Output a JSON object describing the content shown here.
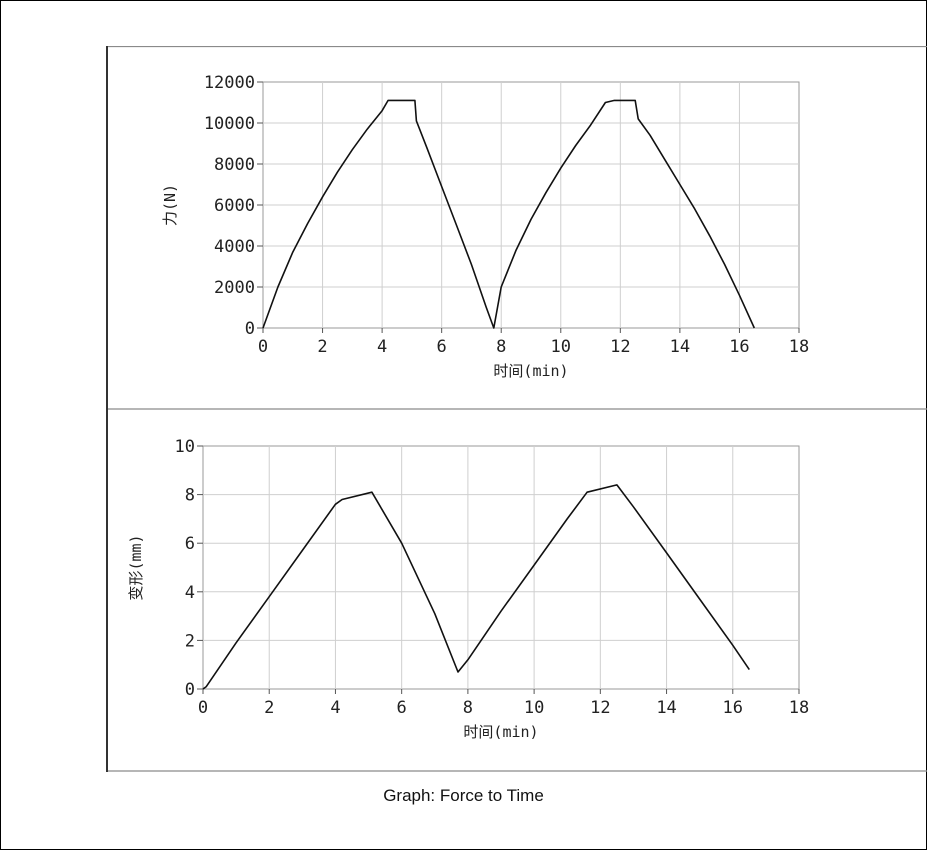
{
  "caption": "Graph: Force to Time",
  "chart_data": [
    {
      "type": "line",
      "title": "",
      "xlabel": "时间(min)",
      "ylabel": "力(N)",
      "xlim": [
        0,
        18
      ],
      "ylim": [
        0,
        12000
      ],
      "xticks": [
        "0",
        "2",
        "4",
        "6",
        "8",
        "10",
        "12",
        "14",
        "16",
        "18"
      ],
      "yticks": [
        "0",
        "2000",
        "4000",
        "6000",
        "8000",
        "10000",
        "12000"
      ],
      "grid": true,
      "series": [
        {
          "x": [
            0,
            0.5,
            1,
            1.5,
            2,
            2.5,
            3,
            3.5,
            4,
            4.2,
            4.5,
            5.1,
            5.15,
            5.5,
            6,
            6.5,
            7,
            7.5,
            7.75,
            8,
            8.5,
            9,
            9.5,
            10,
            10.5,
            11,
            11.5,
            11.8,
            12.5,
            12.6,
            13,
            13.5,
            14,
            14.5,
            15,
            15.5,
            16,
            16.5
          ],
          "y": [
            0,
            2000,
            3700,
            5100,
            6400,
            7600,
            8700,
            9700,
            10600,
            11100,
            11100,
            11100,
            10100,
            8800,
            6900,
            5000,
            3100,
            1000,
            0,
            2000,
            3800,
            5300,
            6600,
            7800,
            8900,
            9900,
            11000,
            11100,
            11100,
            10200,
            9400,
            8200,
            7000,
            5800,
            4500,
            3100,
            1600,
            0
          ]
        }
      ]
    },
    {
      "type": "line",
      "title": "",
      "xlabel": "时间(min)",
      "ylabel": "变形(mm)",
      "xlim": [
        0,
        18
      ],
      "ylim": [
        0,
        10
      ],
      "xticks": [
        "0",
        "2",
        "4",
        "6",
        "8",
        "10",
        "12",
        "14",
        "16",
        "18"
      ],
      "yticks": [
        "0",
        "2",
        "4",
        "6",
        "8",
        "10"
      ],
      "grid": true,
      "series": [
        {
          "x": [
            0,
            0.1,
            1,
            2,
            3,
            4,
            4.2,
            5.1,
            6,
            7,
            7.7,
            8,
            9,
            10,
            11,
            11.6,
            12.5,
            13,
            14,
            15,
            16,
            16.5
          ],
          "y": [
            0,
            0.1,
            1.9,
            3.8,
            5.7,
            7.6,
            7.8,
            8.1,
            6.0,
            3.1,
            0.7,
            1.2,
            3.2,
            5.1,
            7.0,
            8.1,
            8.4,
            7.5,
            5.6,
            3.7,
            1.8,
            0.8
          ]
        }
      ]
    }
  ]
}
